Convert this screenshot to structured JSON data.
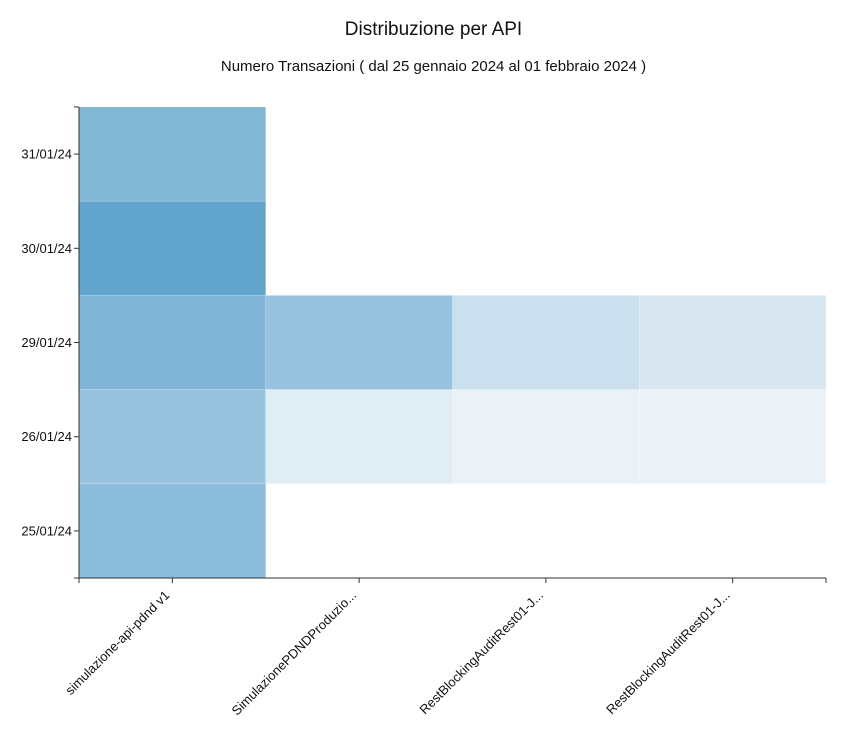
{
  "chart_data": {
    "type": "heatmap",
    "title": "Distribuzione per API",
    "subtitle": "Numero Transazioni ( dal 25 gennaio 2024 al 01 febbraio 2024 )",
    "x_categories": [
      "simulazione-api-pdnd v1",
      "SimulazionePDNDProduzio...",
      "RestBlockingAuditRest01-J...",
      "RestBlockingAuditRest01-J..."
    ],
    "y_categories": [
      "31/01/24",
      "30/01/24",
      "29/01/24",
      "26/01/24",
      "25/01/24"
    ],
    "values": [
      [
        0.62,
        null,
        null,
        null
      ],
      [
        0.8,
        null,
        null,
        null
      ],
      [
        0.63,
        0.5,
        0.22,
        0.15
      ],
      [
        0.5,
        0.1,
        0.05,
        0.05
      ],
      [
        0.57,
        null,
        null,
        null
      ]
    ],
    "color_scale": {
      "low": "#f3f7fb",
      "high": "#3d8fc0"
    }
  }
}
